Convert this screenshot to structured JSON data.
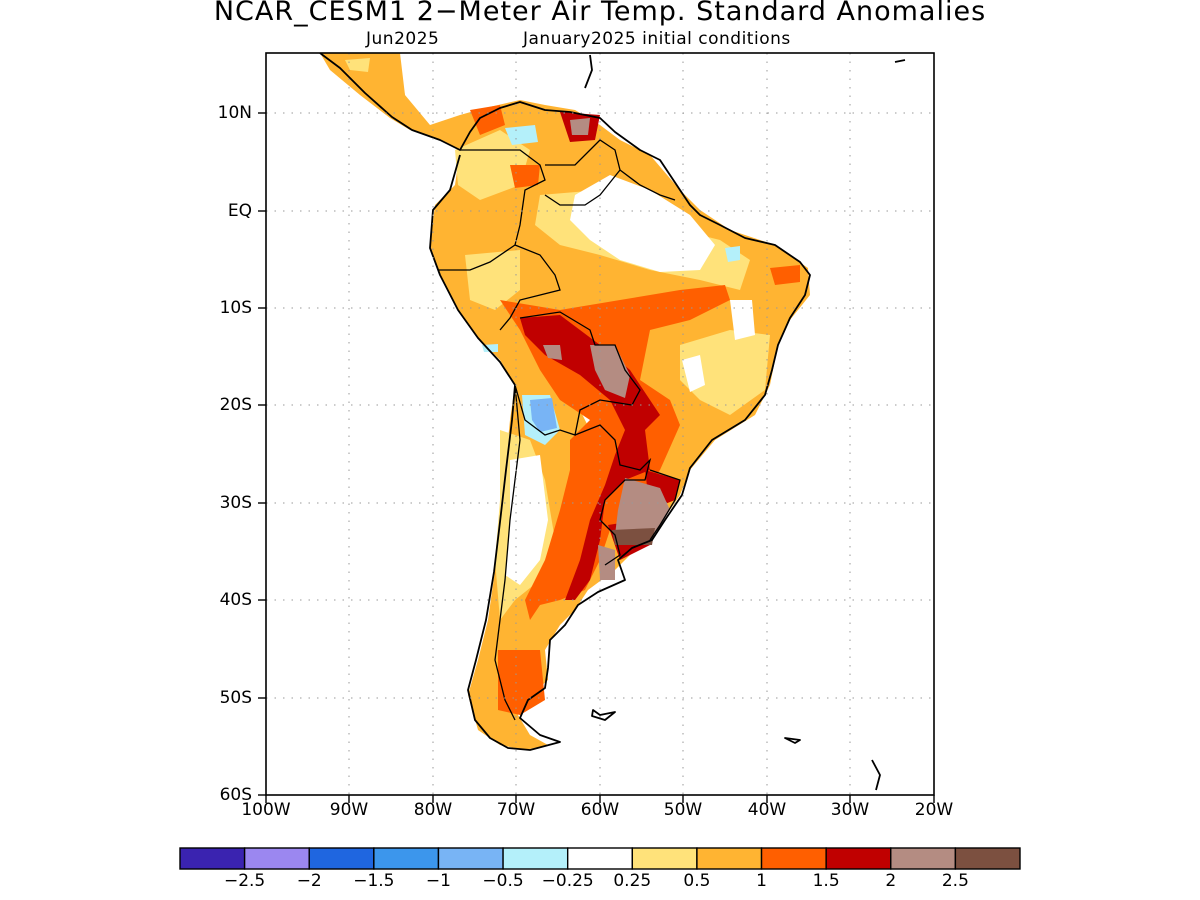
{
  "header": {
    "title": "NCAR_CESM1 2−Meter Air Temp. Standard Anomalies",
    "valid_month": "Jun2025",
    "initial_conditions": "January2025 initial conditions"
  },
  "axes": {
    "lat_labels": [
      "10N",
      "EQ",
      "10S",
      "20S",
      "30S",
      "40S",
      "50S",
      "60S"
    ],
    "lon_labels": [
      "100W",
      "90W",
      "80W",
      "70W",
      "60W",
      "50W",
      "40W",
      "30W",
      "20W"
    ],
    "lat_range": [
      -60,
      14
    ],
    "lon_range": [
      -100,
      -20
    ],
    "grid": "dotted"
  },
  "colorbar": {
    "colors": [
      "#3a23b0",
      "#9b87f0",
      "#1f66e0",
      "#3c96ec",
      "#78b4f5",
      "#b4f0fa",
      "#ffffff",
      "#ffe27a",
      "#ffb432",
      "#ff5f00",
      "#c00000",
      "#b48c82",
      "#7c5040"
    ],
    "labels": [
      "−2.5",
      "−2",
      "−1.5",
      "−1",
      "−0.5",
      "−0.25",
      "0.25",
      "0.5",
      "1",
      "1.5",
      "2",
      "2.5"
    ]
  }
}
